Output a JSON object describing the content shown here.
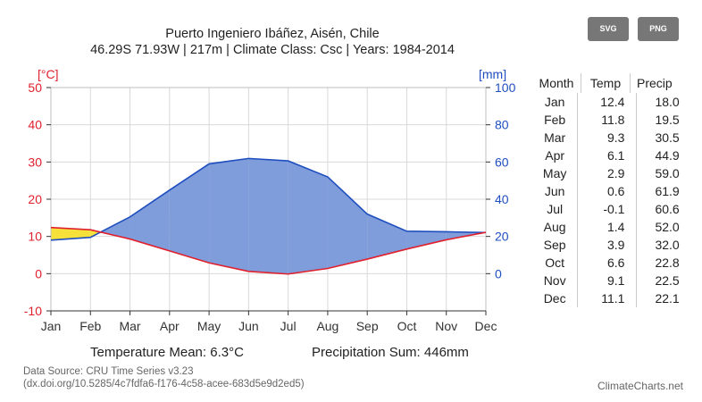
{
  "header": {
    "title": "Puerto Ingeniero Ibáñez, Aisén, Chile",
    "subtitle": "46.29S 71.93W | 217m | Climate Class: Csc | Years: 1984-2014"
  },
  "buttons": {
    "svg_label": "SVG",
    "png_label": "PNG"
  },
  "colors": {
    "temperature": "#e0202c",
    "precipitation": "#1f4fbf",
    "precip_fill": "#7f9cdb",
    "arid_fill": "#f5e13a",
    "grid": "#d9d9d9"
  },
  "chart_data": {
    "type": "line",
    "categories": [
      "Jan",
      "Feb",
      "Mar",
      "Apr",
      "May",
      "Jun",
      "Jul",
      "Aug",
      "Sep",
      "Oct",
      "Nov",
      "Dec"
    ],
    "series": [
      {
        "axis": "left",
        "unit_label": "[°C]",
        "values": [
          12.4,
          11.8,
          9.3,
          6.1,
          2.9,
          0.6,
          -0.1,
          1.4,
          3.9,
          6.6,
          9.1,
          11.1
        ]
      },
      {
        "axis": "right",
        "unit_label": "[mm]",
        "values": [
          18.0,
          19.5,
          30.5,
          44.9,
          59.0,
          61.9,
          60.6,
          52.0,
          32.0,
          22.8,
          22.5,
          22.1
        ]
      }
    ],
    "y_left": {
      "range": [
        -10,
        50
      ],
      "ticks": [
        "-10",
        "0",
        "10",
        "20",
        "30",
        "40",
        "50"
      ]
    },
    "y_right": {
      "range": [
        -20,
        100
      ],
      "ticks": [
        "0",
        "20",
        "40",
        "60",
        "80",
        "100"
      ]
    },
    "grid": true
  },
  "table": {
    "headers": {
      "month": "Month",
      "temp": "Temp",
      "precip": "Precip"
    },
    "rows": [
      {
        "month": "Jan",
        "temp": "12.4",
        "precip": "18.0"
      },
      {
        "month": "Feb",
        "temp": "11.8",
        "precip": "19.5"
      },
      {
        "month": "Mar",
        "temp": "9.3",
        "precip": "30.5"
      },
      {
        "month": "Apr",
        "temp": "6.1",
        "precip": "44.9"
      },
      {
        "month": "May",
        "temp": "2.9",
        "precip": "59.0"
      },
      {
        "month": "Jun",
        "temp": "0.6",
        "precip": "61.9"
      },
      {
        "month": "Jul",
        "temp": "-0.1",
        "precip": "60.6"
      },
      {
        "month": "Aug",
        "temp": "1.4",
        "precip": "52.0"
      },
      {
        "month": "Sep",
        "temp": "3.9",
        "precip": "32.0"
      },
      {
        "month": "Oct",
        "temp": "6.6",
        "precip": "22.8"
      },
      {
        "month": "Nov",
        "temp": "9.1",
        "precip": "22.5"
      },
      {
        "month": "Dec",
        "temp": "11.1",
        "precip": "22.1"
      }
    ]
  },
  "stats": {
    "temperature_mean": "Temperature Mean: 6.3°C",
    "precipitation_sum": "Precipitation Sum: 446mm"
  },
  "footer": {
    "source_line1": "Data Source: CRU Time Series v3.23",
    "source_line2": "(dx.doi.org/10.5285/4c7fdfa6-f176-4c58-acee-683d5e9d2ed5)",
    "brand": "ClimateCharts.net"
  }
}
